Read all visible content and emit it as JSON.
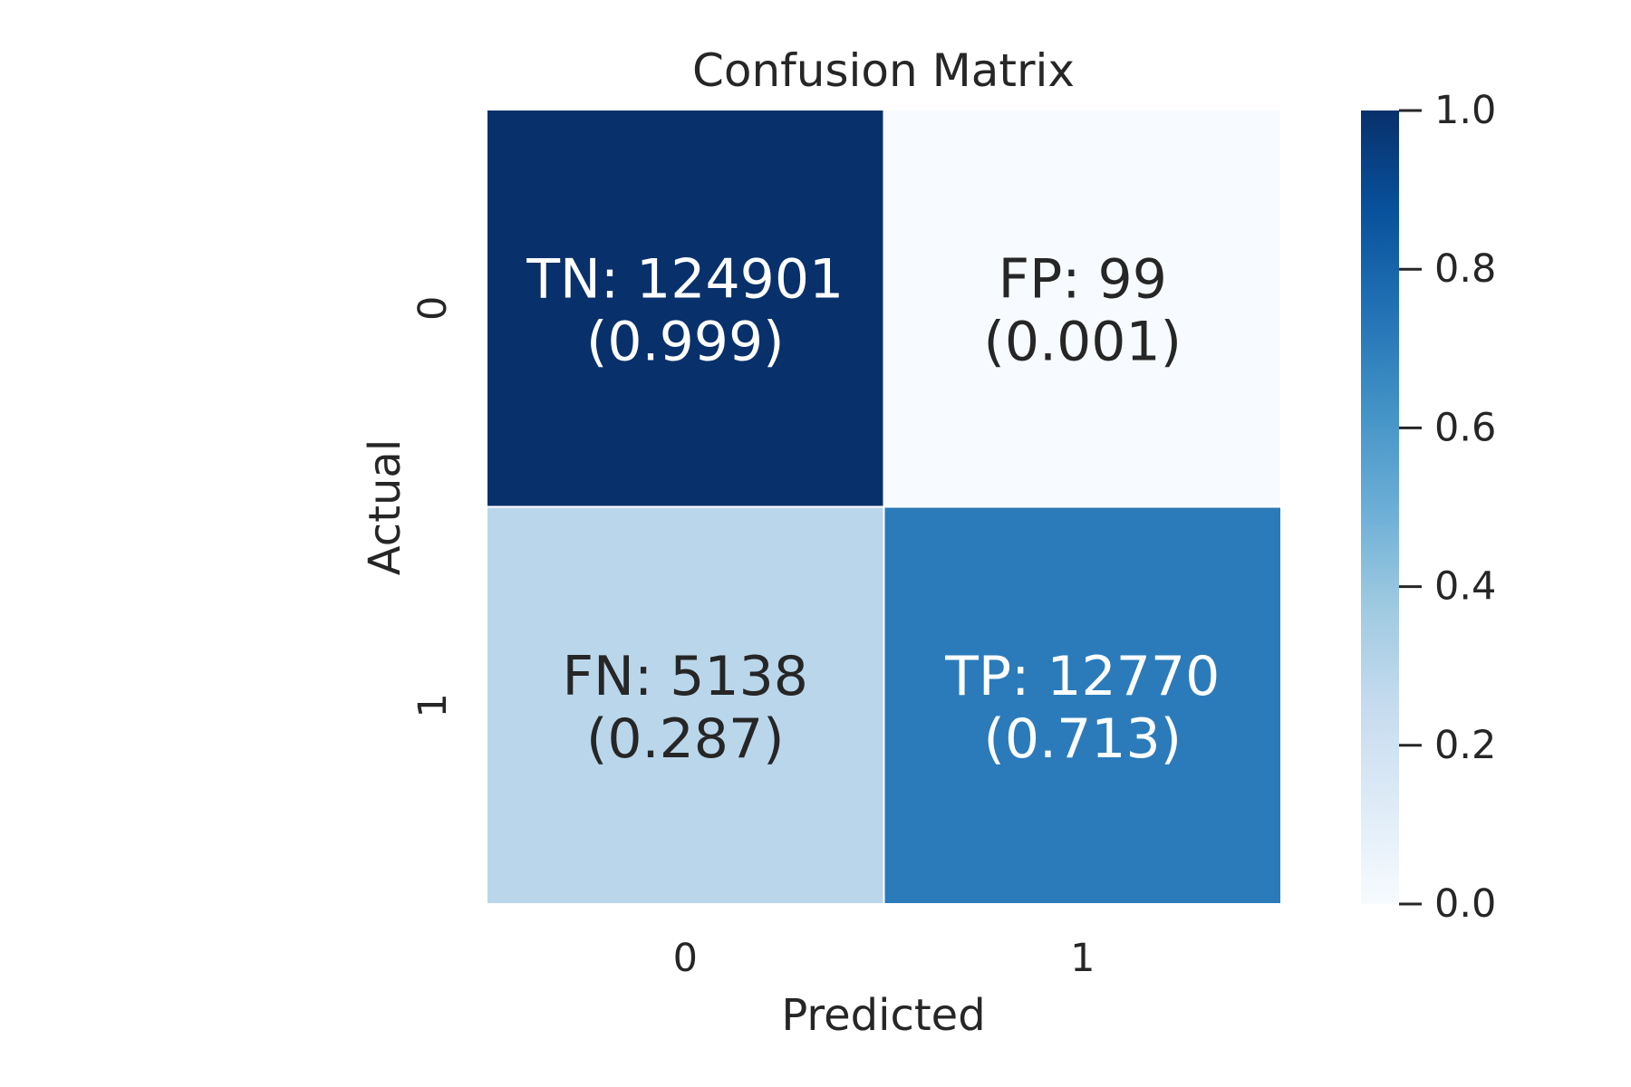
{
  "chart_data": {
    "type": "heatmap",
    "title": "Confusion Matrix",
    "xlabel": "Predicted",
    "ylabel": "Actual",
    "x_categories": [
      "0",
      "1"
    ],
    "y_categories": [
      "0",
      "1"
    ],
    "values": [
      [
        0.999,
        0.001
      ],
      [
        0.287,
        0.713
      ]
    ],
    "counts": [
      [
        124901,
        99
      ],
      [
        5138,
        12770
      ]
    ],
    "cell_labels": [
      [
        {
          "name": "TN",
          "count": "124901",
          "rate": "0.999"
        },
        {
          "name": "FP",
          "count": "99",
          "rate": "0.001"
        }
      ],
      [
        {
          "name": "FN",
          "count": "5138",
          "rate": "0.287"
        },
        {
          "name": "TP",
          "count": "12770",
          "rate": "0.713"
        }
      ]
    ],
    "colorbar": {
      "range": [
        0.0,
        1.0
      ],
      "ticks": [
        "0.0",
        "0.2",
        "0.4",
        "0.6",
        "0.8",
        "1.0"
      ],
      "colormap": "Blues"
    },
    "colors": {
      "text_dark": "#262626",
      "text_light": "#ffffff",
      "cell_border": "#ffffff"
    }
  }
}
